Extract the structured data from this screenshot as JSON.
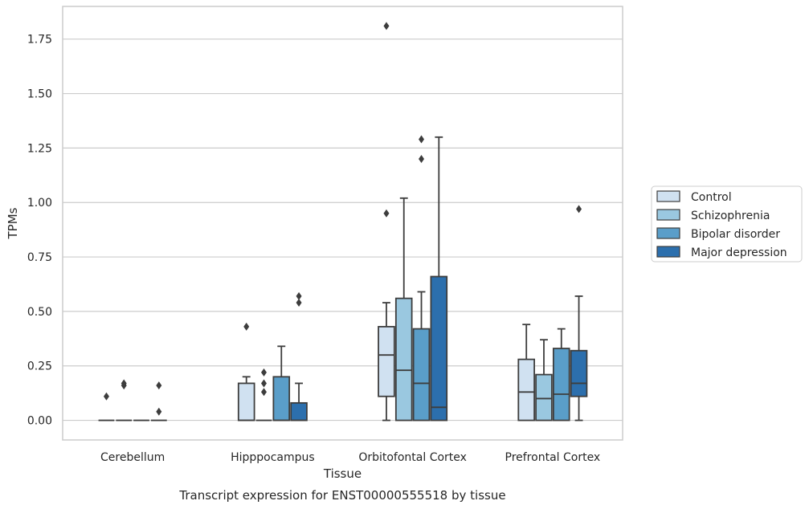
{
  "chart_data": {
    "type": "boxplot",
    "title": "Transcript expression for ENST00000555518 by tissue",
    "xlabel": "Tissue",
    "ylabel": "TPMs",
    "ylim": [
      -0.09,
      1.9
    ],
    "yticks": [
      "0.00",
      "0.25",
      "0.50",
      "0.75",
      "1.00",
      "1.25",
      "1.50",
      "1.75"
    ],
    "grid": true,
    "legend_position": "right",
    "categories": [
      "Cerebellum",
      "Hipppocampus",
      "Orbitofontal Cortex",
      "Prefrontal Cortex"
    ],
    "series": [
      {
        "name": "Control",
        "color": "#d0e1f1",
        "boxes": [
          {
            "q1": 0,
            "median": 0,
            "q3": 0,
            "whislo": 0,
            "whishi": 0,
            "fliers": [
              0.11
            ]
          },
          {
            "q1": 0,
            "median": 0,
            "q3": 0.17,
            "whislo": 0,
            "whishi": 0.2,
            "fliers": [
              0.43
            ]
          },
          {
            "q1": 0.11,
            "median": 0.3,
            "q3": 0.43,
            "whislo": 0,
            "whishi": 0.54,
            "fliers": [
              0.95,
              1.81
            ]
          },
          {
            "q1": 0,
            "median": 0.13,
            "q3": 0.28,
            "whislo": 0,
            "whishi": 0.44,
            "fliers": []
          }
        ]
      },
      {
        "name": "Schizophrenia",
        "color": "#9ac8e0",
        "boxes": [
          {
            "q1": 0,
            "median": 0,
            "q3": 0,
            "whislo": 0,
            "whishi": 0,
            "fliers": [
              0.16,
              0.17
            ]
          },
          {
            "q1": 0,
            "median": 0,
            "q3": 0,
            "whislo": 0,
            "whishi": 0,
            "fliers": [
              0.13,
              0.17,
              0.22
            ]
          },
          {
            "q1": 0,
            "median": 0.23,
            "q3": 0.56,
            "whislo": 0,
            "whishi": 1.02,
            "fliers": []
          },
          {
            "q1": 0,
            "median": 0.1,
            "q3": 0.21,
            "whislo": 0,
            "whishi": 0.37,
            "fliers": []
          }
        ]
      },
      {
        "name": "Bipolar disorder",
        "color": "#5a9ec9",
        "boxes": [
          {
            "q1": 0,
            "median": 0,
            "q3": 0,
            "whislo": 0,
            "whishi": 0,
            "fliers": []
          },
          {
            "q1": 0,
            "median": 0,
            "q3": 0.2,
            "whislo": 0,
            "whishi": 0.34,
            "fliers": []
          },
          {
            "q1": 0,
            "median": 0.17,
            "q3": 0.42,
            "whislo": 0,
            "whishi": 0.59,
            "fliers": [
              1.2,
              1.29
            ]
          },
          {
            "q1": 0,
            "median": 0.12,
            "q3": 0.33,
            "whislo": 0,
            "whishi": 0.42,
            "fliers": []
          }
        ]
      },
      {
        "name": "Major depression",
        "color": "#2c6fad",
        "boxes": [
          {
            "q1": 0,
            "median": 0,
            "q3": 0,
            "whislo": 0,
            "whishi": 0,
            "fliers": [
              0.04,
              0.16
            ]
          },
          {
            "q1": 0,
            "median": 0,
            "q3": 0.08,
            "whislo": 0,
            "whishi": 0.17,
            "fliers": [
              0.54,
              0.57
            ]
          },
          {
            "q1": 0,
            "median": 0.06,
            "q3": 0.66,
            "whislo": 0,
            "whishi": 1.3,
            "fliers": []
          },
          {
            "q1": 0.11,
            "median": 0.17,
            "q3": 0.32,
            "whislo": 0,
            "whishi": 0.57,
            "fliers": [
              0.97
            ]
          }
        ]
      }
    ]
  }
}
